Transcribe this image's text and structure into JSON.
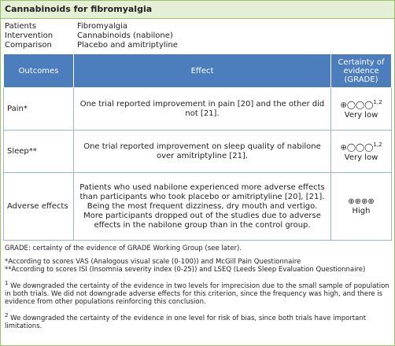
{
  "title": "Cannabinoids for fibromyalgia",
  "pico": [
    {
      "label": "Patients",
      "value": "Fibromyalgia"
    },
    {
      "label": "Intervention",
      "value": "Cannabinoids (nabilone)"
    },
    {
      "label": "Comparison",
      "value": "Placebo and amitriptyline"
    }
  ],
  "table": {
    "headers": [
      "Outcomes",
      "Effect",
      "Certainty of evidence (GRADE)"
    ],
    "rows": [
      {
        "outcome": "Pain*",
        "effect": "One trial reported improvement in pain [20] and the other did not [21].",
        "symbols": "⊕◯◯◯",
        "note": "1,2",
        "certainty": "Very low"
      },
      {
        "outcome": "Sleep**",
        "effect": "One trial reported improvement on sleep quality of nabilone over amitriptyline [21].",
        "symbols": "⊕◯◯◯",
        "note": "1,2",
        "certainty": "Very low"
      },
      {
        "outcome": "Adverse effects",
        "effect": "Patients who used nabilone experienced more adverse effects than participants who took placebo or amitriptyline [20], [21]. Being the most frequent dizziness, dry mouth and vertigo. More participants dropped out of the studies due to adverse effects in the nabilone group than in the control group.",
        "symbols": "⊕⊕⊕⊕",
        "note": null,
        "certainty": "High"
      }
    ]
  },
  "grade_note": "GRADE: certainty of the evidence of GRADE Working Group (see later).",
  "scales": [
    "*According to scores VAS (Analogous visual scale (0-100)) and McGill Pain Questionnaire",
    "**According to scores ISI (Insomnia severity index (0-25)) and LSEQ (Leeds Sleep Evaluation Questionnaire)"
  ],
  "footnotes": [
    {
      "marker": "1",
      "text": "We downgraded the certainty of the evidence in two levels for imprecision due to the small sample of population in both trials. We did not downgrade adverse effects for this criterion, since the frequency was high, and there is evidence from other populations reinforcing this conclusion."
    },
    {
      "marker": "2",
      "text": "We downgraded the certainty of the evidence in one level for risk of bias, since both trials have important limitations."
    }
  ]
}
